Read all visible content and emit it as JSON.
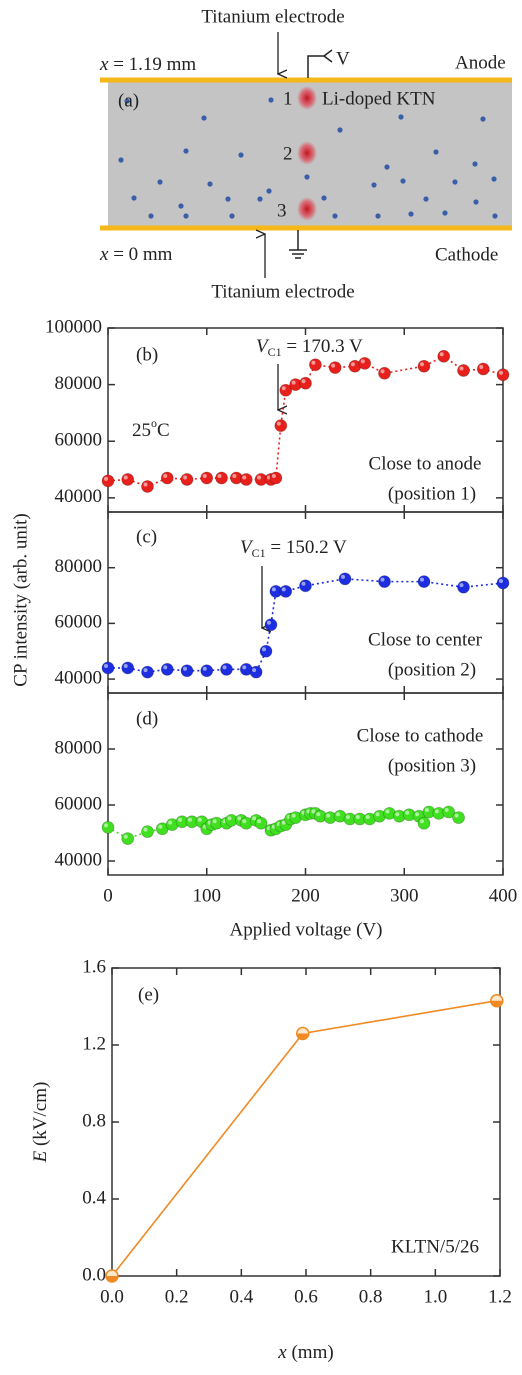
{
  "diagram": {
    "top_electrode": "Titanium electrode",
    "top_position": {
      "symbol": "x",
      "text": "= 1.19 mm"
    },
    "voltage": "V",
    "anode": "Anode",
    "label": "(a)",
    "positions": [
      "1",
      "2",
      "3"
    ],
    "crystal": "Li-doped KTN",
    "bottom_position": {
      "symbol": "x",
      "text": "= 0 mm"
    },
    "cathode": "Cathode",
    "bottom_electrode": "Titanium electrode"
  },
  "chart_data": [
    {
      "type": "line",
      "label": "(b)",
      "annotation": {
        "symbol": "V",
        "subscript": "C1",
        "text": "= 170.3 V"
      },
      "temperature": {
        "number": "25",
        "superscript": "o",
        "unit": "C"
      },
      "note": [
        "Close to anode",
        "(position 1)"
      ],
      "xlim": [
        0,
        400
      ],
      "xticks": [
        0,
        100,
        200,
        300,
        400
      ],
      "ylim": [
        35000,
        100000
      ],
      "yticks": [
        40000,
        60000,
        80000,
        100000
      ],
      "series": [
        {
          "color": "#e8201c",
          "linestyle": "dotted",
          "x": [
            0,
            20,
            40,
            60,
            80,
            100,
            115,
            130,
            140,
            155,
            165,
            170,
            175,
            180,
            190,
            200,
            210,
            230,
            250,
            260,
            280,
            320,
            340,
            360,
            380,
            400
          ],
          "values": [
            46000,
            46500,
            44000,
            47000,
            46500,
            47000,
            47000,
            47000,
            46500,
            46500,
            46500,
            47000,
            65500,
            78000,
            80000,
            80500,
            87000,
            86000,
            86500,
            87500,
            84000,
            86500,
            90000,
            85000,
            85500,
            83500
          ]
        }
      ]
    },
    {
      "type": "line",
      "label": "(c)",
      "annotation": {
        "symbol": "V",
        "subscript": "C1",
        "text": "= 150.2 V"
      },
      "note": [
        "Close to center",
        "(position 2)"
      ],
      "ylabel": "CP intensity (arb. unit)",
      "xlim": [
        0,
        400
      ],
      "xticks": [
        0,
        100,
        200,
        300,
        400
      ],
      "ylim": [
        35000,
        100000
      ],
      "yticks": [
        40000,
        60000,
        80000
      ],
      "series": [
        {
          "color": "#1c2ee0",
          "linestyle": "dotted",
          "x": [
            0,
            20,
            40,
            60,
            80,
            100,
            120,
            140,
            150,
            160,
            165,
            170,
            180,
            200,
            240,
            280,
            320,
            360,
            400
          ],
          "values": [
            44000,
            44000,
            42500,
            43500,
            43000,
            43000,
            43500,
            43500,
            42500,
            50000,
            59500,
            71500,
            71500,
            73500,
            76000,
            75000,
            75000,
            73000,
            74500
          ]
        }
      ]
    },
    {
      "type": "line",
      "label": "(d)",
      "note": [
        "Close to cathode",
        "(position 3)"
      ],
      "xlabel": "Applied voltage (V)",
      "xlim": [
        0,
        400
      ],
      "xticks": [
        0,
        100,
        200,
        300,
        400
      ],
      "ylim": [
        35000,
        100000
      ],
      "yticks": [
        40000,
        60000,
        80000
      ],
      "series": [
        {
          "color": "#40e020",
          "linestyle": "dotted",
          "x": [
            0,
            20,
            40,
            55,
            65,
            75,
            85,
            95,
            100,
            105,
            110,
            120,
            125,
            135,
            140,
            150,
            155,
            165,
            170,
            175,
            180,
            185,
            190,
            200,
            205,
            210,
            215,
            225,
            235,
            245,
            255,
            265,
            275,
            285,
            295,
            305,
            315,
            320,
            325,
            335,
            345,
            355
          ],
          "values": [
            52000,
            48000,
            50500,
            51500,
            53000,
            54000,
            54000,
            54000,
            51500,
            53000,
            53500,
            53500,
            54500,
            54500,
            53500,
            54500,
            53500,
            51000,
            51500,
            52500,
            53000,
            55000,
            55500,
            56500,
            57000,
            57000,
            56000,
            55500,
            56000,
            55000,
            55000,
            55000,
            56000,
            57000,
            56000,
            56500,
            56000,
            53500,
            57500,
            57000,
            57500,
            55500
          ]
        }
      ]
    },
    {
      "type": "line",
      "label": "(e)",
      "note": [
        "KLTN/5/26"
      ],
      "xlabel": {
        "symbol": "x",
        "unit": "(mm)"
      },
      "ylabel": {
        "symbol": "E",
        "unit": "(kV/cm)"
      },
      "xlim": [
        0,
        1.2
      ],
      "xticks": [
        {
          "value": 0,
          "label": "0.0"
        },
        0.2,
        0.4,
        0.6,
        0.8,
        {
          "value": 1,
          "label": "1.0"
        },
        1.2
      ],
      "ylim": [
        0,
        1.6
      ],
      "yticks": [
        {
          "value": 0,
          "label": "0.0"
        },
        0.4,
        0.8,
        1.2,
        1.6
      ],
      "series": [
        {
          "color": "#f08a24",
          "linestyle": "solid",
          "marker": "half",
          "x": [
            0,
            0.59,
            1.19
          ],
          "values": [
            0,
            1.26,
            1.43
          ]
        }
      ]
    }
  ]
}
